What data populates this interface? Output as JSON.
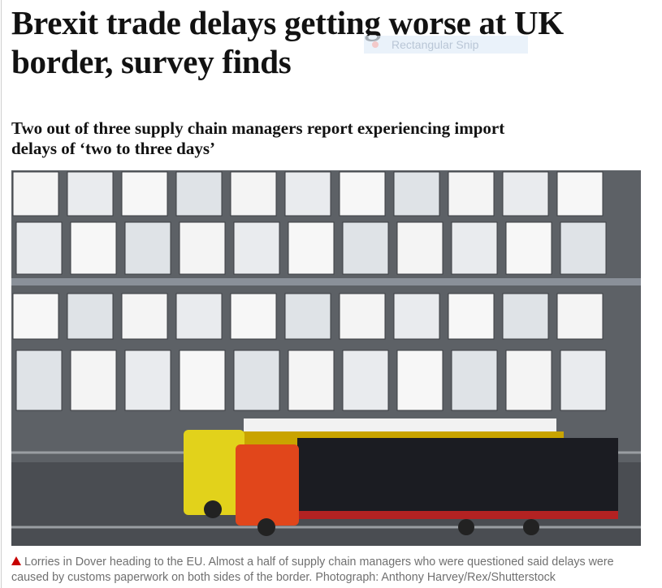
{
  "article": {
    "headline": "Brexit trade delays getting worse at UK border, survey finds",
    "standfirst": "Two out of three supply chain managers report experiencing import delays of ‘two to three days’",
    "caption": "Lorries in Dover heading to the EU. Almost a half of supply chain managers who were questioned said delays were caused by customs paperwork on both sides of the border. Photograph: Anthony Harvey/Rex/Shutterstock"
  },
  "overlay": {
    "label": "Rectangular Snip"
  }
}
